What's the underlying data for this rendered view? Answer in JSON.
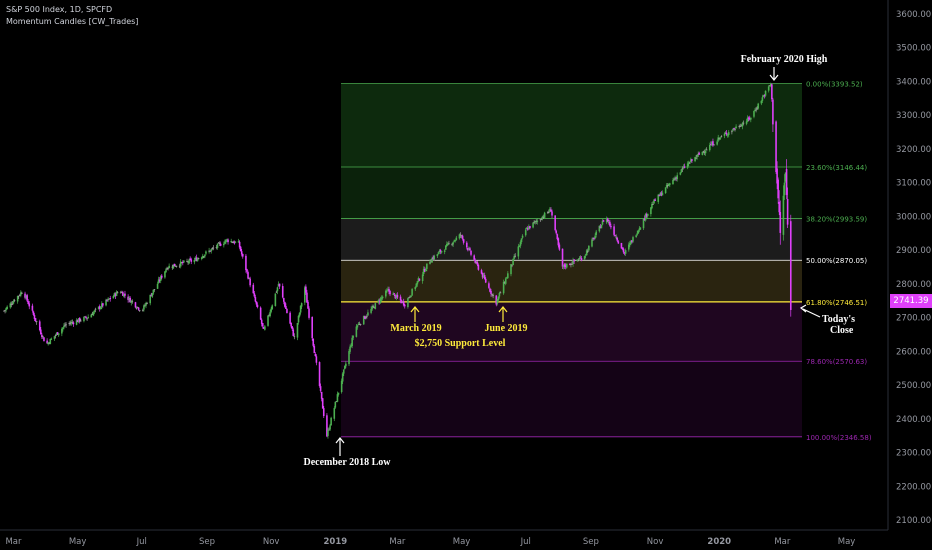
{
  "legend": {
    "symbol": "S&P 500 Index, 1D, SPCFD",
    "indicator": "Momentum Candles [CW_Trades]"
  },
  "price_axis": {
    "ticks": [
      "3600.00",
      "3500.00",
      "3400.00",
      "3300.00",
      "3200.00",
      "3100.00",
      "3000.00",
      "2900.00",
      "2800.00",
      "2700.00",
      "2600.00",
      "2500.00",
      "2400.00",
      "2300.00",
      "2200.00",
      "2100.00"
    ],
    "current_price": "2741.39"
  },
  "time_axis": {
    "labels": [
      "Mar",
      "May",
      "Jul",
      "Sep",
      "Nov",
      "2019",
      "Mar",
      "May",
      "Jul",
      "Sep",
      "Nov",
      "2020",
      "Mar",
      "May"
    ]
  },
  "fib_levels": [
    {
      "label": "0.00%(3393.52)",
      "price": 3393.52,
      "color": "#4caf50"
    },
    {
      "label": "23.60%(3146.44)",
      "price": 3146.44,
      "color": "#4caf50"
    },
    {
      "label": "38.20%(2993.59)",
      "price": 2993.59,
      "color": "#4caf50"
    },
    {
      "label": "50.00%(2870.05)",
      "price": 2870.05,
      "color": "#ffffff"
    },
    {
      "label": "61.80%(2746.51)",
      "price": 2746.51,
      "color": "#ffeb3b"
    },
    {
      "label": "78.60%(2570.63)",
      "price": 2570.63,
      "color": "#9c27b0"
    },
    {
      "label": "100.00%(2346.58)",
      "price": 2346.58,
      "color": "#9c27b0"
    }
  ],
  "annotations": {
    "feb_high": "February 2020 High",
    "dec_low": "December 2018 Low",
    "march_2019": "March 2019",
    "june_2019": "June 2019",
    "support": "$2,750 Support Level",
    "today_close_1": "Today's",
    "today_close_2": "Close"
  },
  "colors": {
    "bull": "#4caf50",
    "bear": "#e040fb",
    "neutral": "#9e9e9e"
  },
  "chart_data": {
    "type": "candlestick",
    "x_range": [
      "2018-02",
      "2020-05"
    ],
    "ylim": [
      2100,
      3600
    ],
    "close_path": [
      [
        "2018-02-20",
        2720
      ],
      [
        "2018-03-10",
        2780
      ],
      [
        "2018-04-01",
        2620
      ],
      [
        "2018-04-20",
        2680
      ],
      [
        "2018-05-10",
        2700
      ],
      [
        "2018-06-10",
        2780
      ],
      [
        "2018-07-01",
        2720
      ],
      [
        "2018-07-25",
        2850
      ],
      [
        "2018-08-20",
        2870
      ],
      [
        "2018-09-20",
        2930
      ],
      [
        "2018-10-01",
        2920
      ],
      [
        "2018-10-25",
        2660
      ],
      [
        "2018-11-08",
        2800
      ],
      [
        "2018-11-23",
        2640
      ],
      [
        "2018-12-03",
        2790
      ],
      [
        "2018-12-24",
        2350
      ],
      [
        "2019-01-20",
        2670
      ],
      [
        "2019-02-20",
        2780
      ],
      [
        "2019-03-08",
        2740
      ],
      [
        "2019-04-01",
        2870
      ],
      [
        "2019-04-30",
        2945
      ],
      [
        "2019-05-20",
        2830
      ],
      [
        "2019-06-03",
        2745
      ],
      [
        "2019-07-01",
        2960
      ],
      [
        "2019-07-25",
        3020
      ],
      [
        "2019-08-05",
        2850
      ],
      [
        "2019-08-25",
        2880
      ],
      [
        "2019-09-15",
        3000
      ],
      [
        "2019-10-03",
        2890
      ],
      [
        "2019-10-30",
        3040
      ],
      [
        "2019-11-30",
        3150
      ],
      [
        "2019-12-31",
        3230
      ],
      [
        "2020-01-30",
        3290
      ],
      [
        "2020-02-19",
        3393
      ],
      [
        "2020-02-28",
        2950
      ],
      [
        "2020-03-04",
        3130
      ],
      [
        "2020-03-06",
        2972
      ],
      [
        "2020-03-09",
        2746
      ]
    ]
  }
}
